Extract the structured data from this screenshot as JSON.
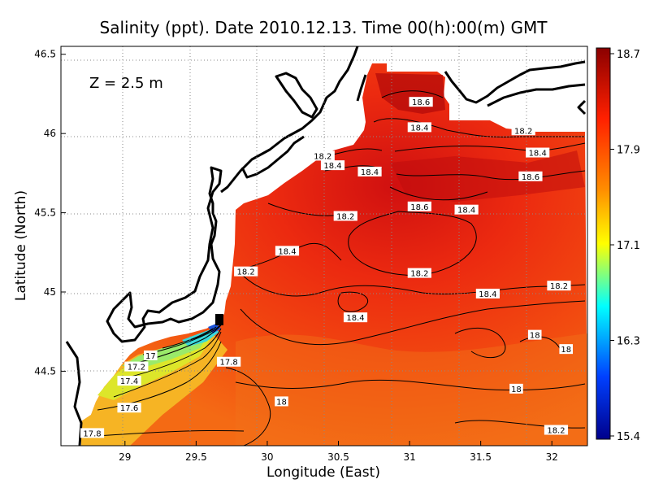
{
  "title": "Salinity (ppt). Date 2010.12.13. Time 00(h):00(m) GMT",
  "depth_label": "Z = 2.5 m",
  "x_axis": {
    "label": "Longitude (East)",
    "ticks": [
      "29",
      "29.5",
      "30",
      "30.5",
      "31",
      "31.5",
      "32"
    ],
    "range": [
      28.55,
      32.25
    ]
  },
  "y_axis": {
    "label": "Latitude (North)",
    "ticks": [
      "44.5",
      "45",
      "45.5",
      "46",
      "46.5"
    ],
    "range": [
      44.03,
      46.55
    ]
  },
  "colorbar": {
    "ticks": [
      "18.7",
      "17.9",
      "17.1",
      "16.3",
      "15.4"
    ],
    "range": [
      15.4,
      18.7
    ],
    "colors": [
      "#00008b",
      "#0040ff",
      "#00ffff",
      "#ffff00",
      "#ff8c00",
      "#ff2000",
      "#8b0000"
    ]
  },
  "contour_labels": [
    {
      "text": "18.6",
      "lon": 31.08,
      "lat": 46.2
    },
    {
      "text": "18.4",
      "lon": 31.07,
      "lat": 46.04
    },
    {
      "text": "18.2",
      "lon": 31.8,
      "lat": 46.02
    },
    {
      "text": "18.4",
      "lon": 31.9,
      "lat": 45.88
    },
    {
      "text": "18.6",
      "lon": 31.85,
      "lat": 45.73
    },
    {
      "text": "18.2",
      "lon": 30.39,
      "lat": 45.86
    },
    {
      "text": "18.4",
      "lon": 30.46,
      "lat": 45.8
    },
    {
      "text": "18.4",
      "lon": 30.72,
      "lat": 45.76
    },
    {
      "text": "18.6",
      "lon": 31.07,
      "lat": 45.54
    },
    {
      "text": "18.4",
      "lon": 31.4,
      "lat": 45.52
    },
    {
      "text": "18.2",
      "lon": 30.55,
      "lat": 45.48
    },
    {
      "text": "18.4",
      "lon": 30.14,
      "lat": 45.26
    },
    {
      "text": "18.2",
      "lon": 29.85,
      "lat": 45.13
    },
    {
      "text": "18.2",
      "lon": 31.07,
      "lat": 45.12
    },
    {
      "text": "18.4",
      "lon": 31.55,
      "lat": 44.99
    },
    {
      "text": "18.2",
      "lon": 32.05,
      "lat": 45.04
    },
    {
      "text": "18.4",
      "lon": 30.62,
      "lat": 44.84
    },
    {
      "text": "18",
      "lon": 31.88,
      "lat": 44.73
    },
    {
      "text": "18",
      "lon": 32.1,
      "lat": 44.64
    },
    {
      "text": "17",
      "lon": 29.18,
      "lat": 44.6
    },
    {
      "text": "17.2",
      "lon": 29.08,
      "lat": 44.53
    },
    {
      "text": "17.8",
      "lon": 29.73,
      "lat": 44.56
    },
    {
      "text": "17.4",
      "lon": 29.03,
      "lat": 44.44
    },
    {
      "text": "18",
      "lon": 31.75,
      "lat": 44.39
    },
    {
      "text": "18",
      "lon": 30.1,
      "lat": 44.31
    },
    {
      "text": "17.6",
      "lon": 29.03,
      "lat": 44.27
    },
    {
      "text": "18.2",
      "lon": 32.03,
      "lat": 44.13
    },
    {
      "text": "17.8",
      "lon": 28.77,
      "lat": 44.11
    }
  ]
}
